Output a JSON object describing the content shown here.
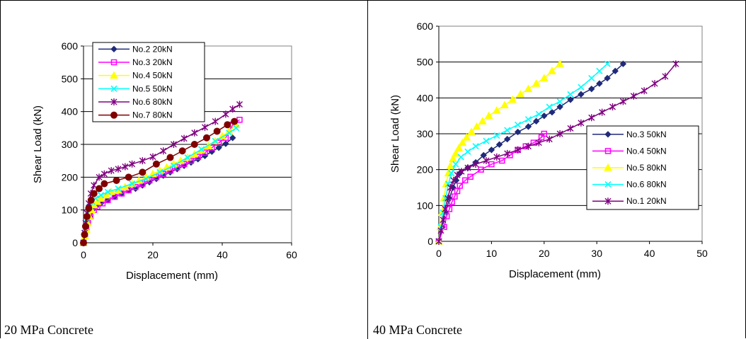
{
  "panels": [
    {
      "caption": "20 MPa Concrete"
    },
    {
      "caption": "40 MPa Concrete"
    }
  ],
  "chart_data": [
    {
      "type": "line",
      "title": "",
      "xlabel": "Displacement (mm)",
      "ylabel": "Shear Load (kN)",
      "xlim": [
        0,
        60
      ],
      "ylim": [
        0,
        600
      ],
      "xticks": [
        0,
        20,
        40,
        60
      ],
      "yticks": [
        0,
        100,
        200,
        300,
        400,
        500,
        600
      ],
      "grid": "horizontal",
      "legend_position": "top-left",
      "series": [
        {
          "name": "No.2 20kN",
          "color": "#1f2a7a",
          "marker": "diamond",
          "x": [
            0,
            0.4,
            0.8,
            1.2,
            1.8,
            2.6,
            3.6,
            5,
            7,
            9,
            11,
            13,
            15,
            17,
            19,
            21,
            23,
            25,
            27,
            29,
            31,
            33,
            35,
            37,
            39,
            41,
            43
          ],
          "y": [
            0,
            20,
            40,
            60,
            80,
            100,
            110,
            120,
            130,
            140,
            150,
            160,
            165,
            175,
            185,
            195,
            205,
            215,
            225,
            235,
            245,
            255,
            265,
            278,
            290,
            302,
            320
          ]
        },
        {
          "name": "No.3 20kN",
          "color": "#ff00ff",
          "marker": "square",
          "x": [
            0,
            0.4,
            0.8,
            1.3,
            2,
            3,
            4,
            5.5,
            7,
            9,
            11,
            13,
            15,
            17,
            19,
            21,
            23,
            25,
            27,
            29,
            31,
            33,
            35,
            37,
            39,
            41,
            43,
            45
          ],
          "y": [
            0,
            20,
            40,
            60,
            80,
            100,
            110,
            120,
            130,
            140,
            150,
            160,
            170,
            180,
            190,
            200,
            210,
            220,
            230,
            240,
            250,
            262,
            275,
            290,
            305,
            320,
            360,
            375
          ]
        },
        {
          "name": "No.4 50kN",
          "color": "#ffff00",
          "marker": "triangle",
          "x": [
            0,
            0.4,
            0.8,
            1.2,
            1.7,
            2.3,
            3,
            4,
            5,
            6.5,
            8,
            10,
            12,
            14,
            16,
            18,
            20,
            22,
            24,
            26,
            28,
            30,
            32,
            34,
            36,
            38,
            40,
            42,
            44
          ],
          "y": [
            0,
            20,
            40,
            60,
            80,
            100,
            115,
            125,
            135,
            145,
            155,
            160,
            170,
            180,
            190,
            200,
            210,
            220,
            230,
            240,
            250,
            260,
            270,
            282,
            295,
            310,
            325,
            340,
            360
          ]
        },
        {
          "name": "No.5 50kN",
          "color": "#00ffff",
          "marker": "x",
          "x": [
            0,
            0.4,
            0.8,
            1.2,
            1.8,
            2.5,
            3.5,
            5,
            7,
            10,
            14,
            18,
            22,
            26,
            30,
            34,
            38,
            42,
            44
          ],
          "y": [
            0,
            30,
            60,
            90,
            110,
            125,
            135,
            145,
            155,
            165,
            180,
            195,
            215,
            235,
            260,
            285,
            310,
            335,
            350
          ]
        },
        {
          "name": "No.6 80kN",
          "color": "#800080",
          "marker": "star",
          "x": [
            0,
            0.3,
            0.6,
            1,
            1.5,
            2.1,
            3,
            4.5,
            6,
            8,
            10,
            12,
            14,
            17,
            20,
            23,
            26,
            29,
            32,
            35,
            38,
            41,
            43,
            45
          ],
          "y": [
            0,
            30,
            60,
            90,
            120,
            150,
            175,
            200,
            210,
            220,
            225,
            232,
            240,
            250,
            262,
            280,
            300,
            318,
            335,
            352,
            370,
            392,
            408,
            422
          ]
        },
        {
          "name": "No.7 80kN",
          "color": "#800000",
          "marker": "circle",
          "x": [
            0,
            0.3,
            0.6,
            1,
            1.5,
            2.2,
            3,
            4.5,
            6,
            9.5,
            13,
            17,
            21,
            25,
            28.5,
            32,
            35.5,
            38.5,
            41.5,
            43.5
          ],
          "y": [
            0,
            25,
            50,
            80,
            105,
            130,
            150,
            165,
            180,
            190,
            200,
            215,
            240,
            260,
            280,
            300,
            320,
            340,
            360,
            370
          ]
        }
      ]
    },
    {
      "type": "line",
      "title": "",
      "xlabel": "Displacement (mm)",
      "ylabel": "Shear Load (kN)",
      "xlim": [
        0,
        50
      ],
      "ylim": [
        0,
        600
      ],
      "xticks": [
        0,
        10,
        20,
        30,
        40,
        50
      ],
      "yticks": [
        0,
        100,
        200,
        300,
        400,
        500,
        600
      ],
      "grid": "horizontal",
      "legend_position": "right",
      "series": [
        {
          "name": "No.3 50kN",
          "color": "#1f2a7a",
          "marker": "diamond",
          "x": [
            0,
            0.7,
            1.3,
            2,
            2.7,
            3.3,
            4,
            5.5,
            7,
            8.5,
            10,
            11.5,
            13,
            15,
            17,
            18.5,
            20,
            21.5,
            23,
            25,
            27,
            29,
            30.5,
            32,
            33.5,
            35
          ],
          "y": [
            0,
            40,
            80,
            120,
            150,
            170,
            190,
            205,
            220,
            240,
            255,
            270,
            285,
            305,
            320,
            335,
            350,
            360,
            375,
            395,
            410,
            425,
            440,
            455,
            475,
            495
          ]
        },
        {
          "name": "No.4 50kN",
          "color": "#ff00ff",
          "marker": "square",
          "x": [
            0,
            1,
            1.5,
            2,
            2.5,
            3,
            3.5,
            4,
            5,
            6,
            8,
            10,
            12,
            13.5,
            15,
            16.5,
            18,
            19.5,
            20
          ],
          "y": [
            0,
            40,
            70,
            90,
            110,
            125,
            140,
            155,
            170,
            180,
            200,
            215,
            225,
            240,
            255,
            265,
            275,
            290,
            300
          ]
        },
        {
          "name": "No.5 80kN",
          "color": "#ffff00",
          "marker": "triangle",
          "x": [
            0,
            0.3,
            0.6,
            1,
            1.4,
            1.8,
            2.2,
            2.7,
            3.2,
            3.8,
            4.5,
            5.3,
            6.2,
            7.2,
            8.3,
            9.5,
            11,
            12.5,
            14,
            15.5,
            17,
            18.5,
            20,
            21.5,
            23
          ],
          "y": [
            0,
            40,
            80,
            120,
            160,
            190,
            210,
            230,
            245,
            260,
            275,
            290,
            305,
            320,
            335,
            350,
            365,
            380,
            395,
            410,
            425,
            440,
            455,
            475,
            495
          ]
        },
        {
          "name": "No.6 80kN",
          "color": "#00ffff",
          "marker": "x",
          "x": [
            0,
            0.4,
            0.8,
            1.3,
            1.8,
            2.4,
            3.2,
            4.2,
            5.5,
            7,
            9,
            11,
            13,
            15,
            17,
            19,
            21,
            23,
            25,
            27,
            29,
            30.5,
            32
          ],
          "y": [
            0,
            40,
            80,
            120,
            160,
            190,
            215,
            235,
            250,
            265,
            280,
            295,
            310,
            325,
            340,
            355,
            375,
            390,
            410,
            430,
            455,
            475,
            495
          ]
        },
        {
          "name": "No.1 20kN",
          "color": "#800080",
          "marker": "star",
          "x": [
            0,
            0.4,
            0.8,
            1.2,
            1.7,
            2.2,
            2.8,
            3.5,
            4.3,
            5.5,
            7,
            9,
            11,
            13,
            15,
            17,
            19,
            21,
            23,
            25,
            27,
            29,
            31,
            33,
            35,
            37,
            39,
            41,
            43,
            45
          ],
          "y": [
            0,
            30,
            60,
            90,
            120,
            150,
            170,
            185,
            195,
            205,
            215,
            225,
            235,
            245,
            255,
            265,
            275,
            285,
            300,
            315,
            330,
            345,
            360,
            375,
            390,
            405,
            420,
            440,
            460,
            495
          ]
        }
      ]
    }
  ]
}
